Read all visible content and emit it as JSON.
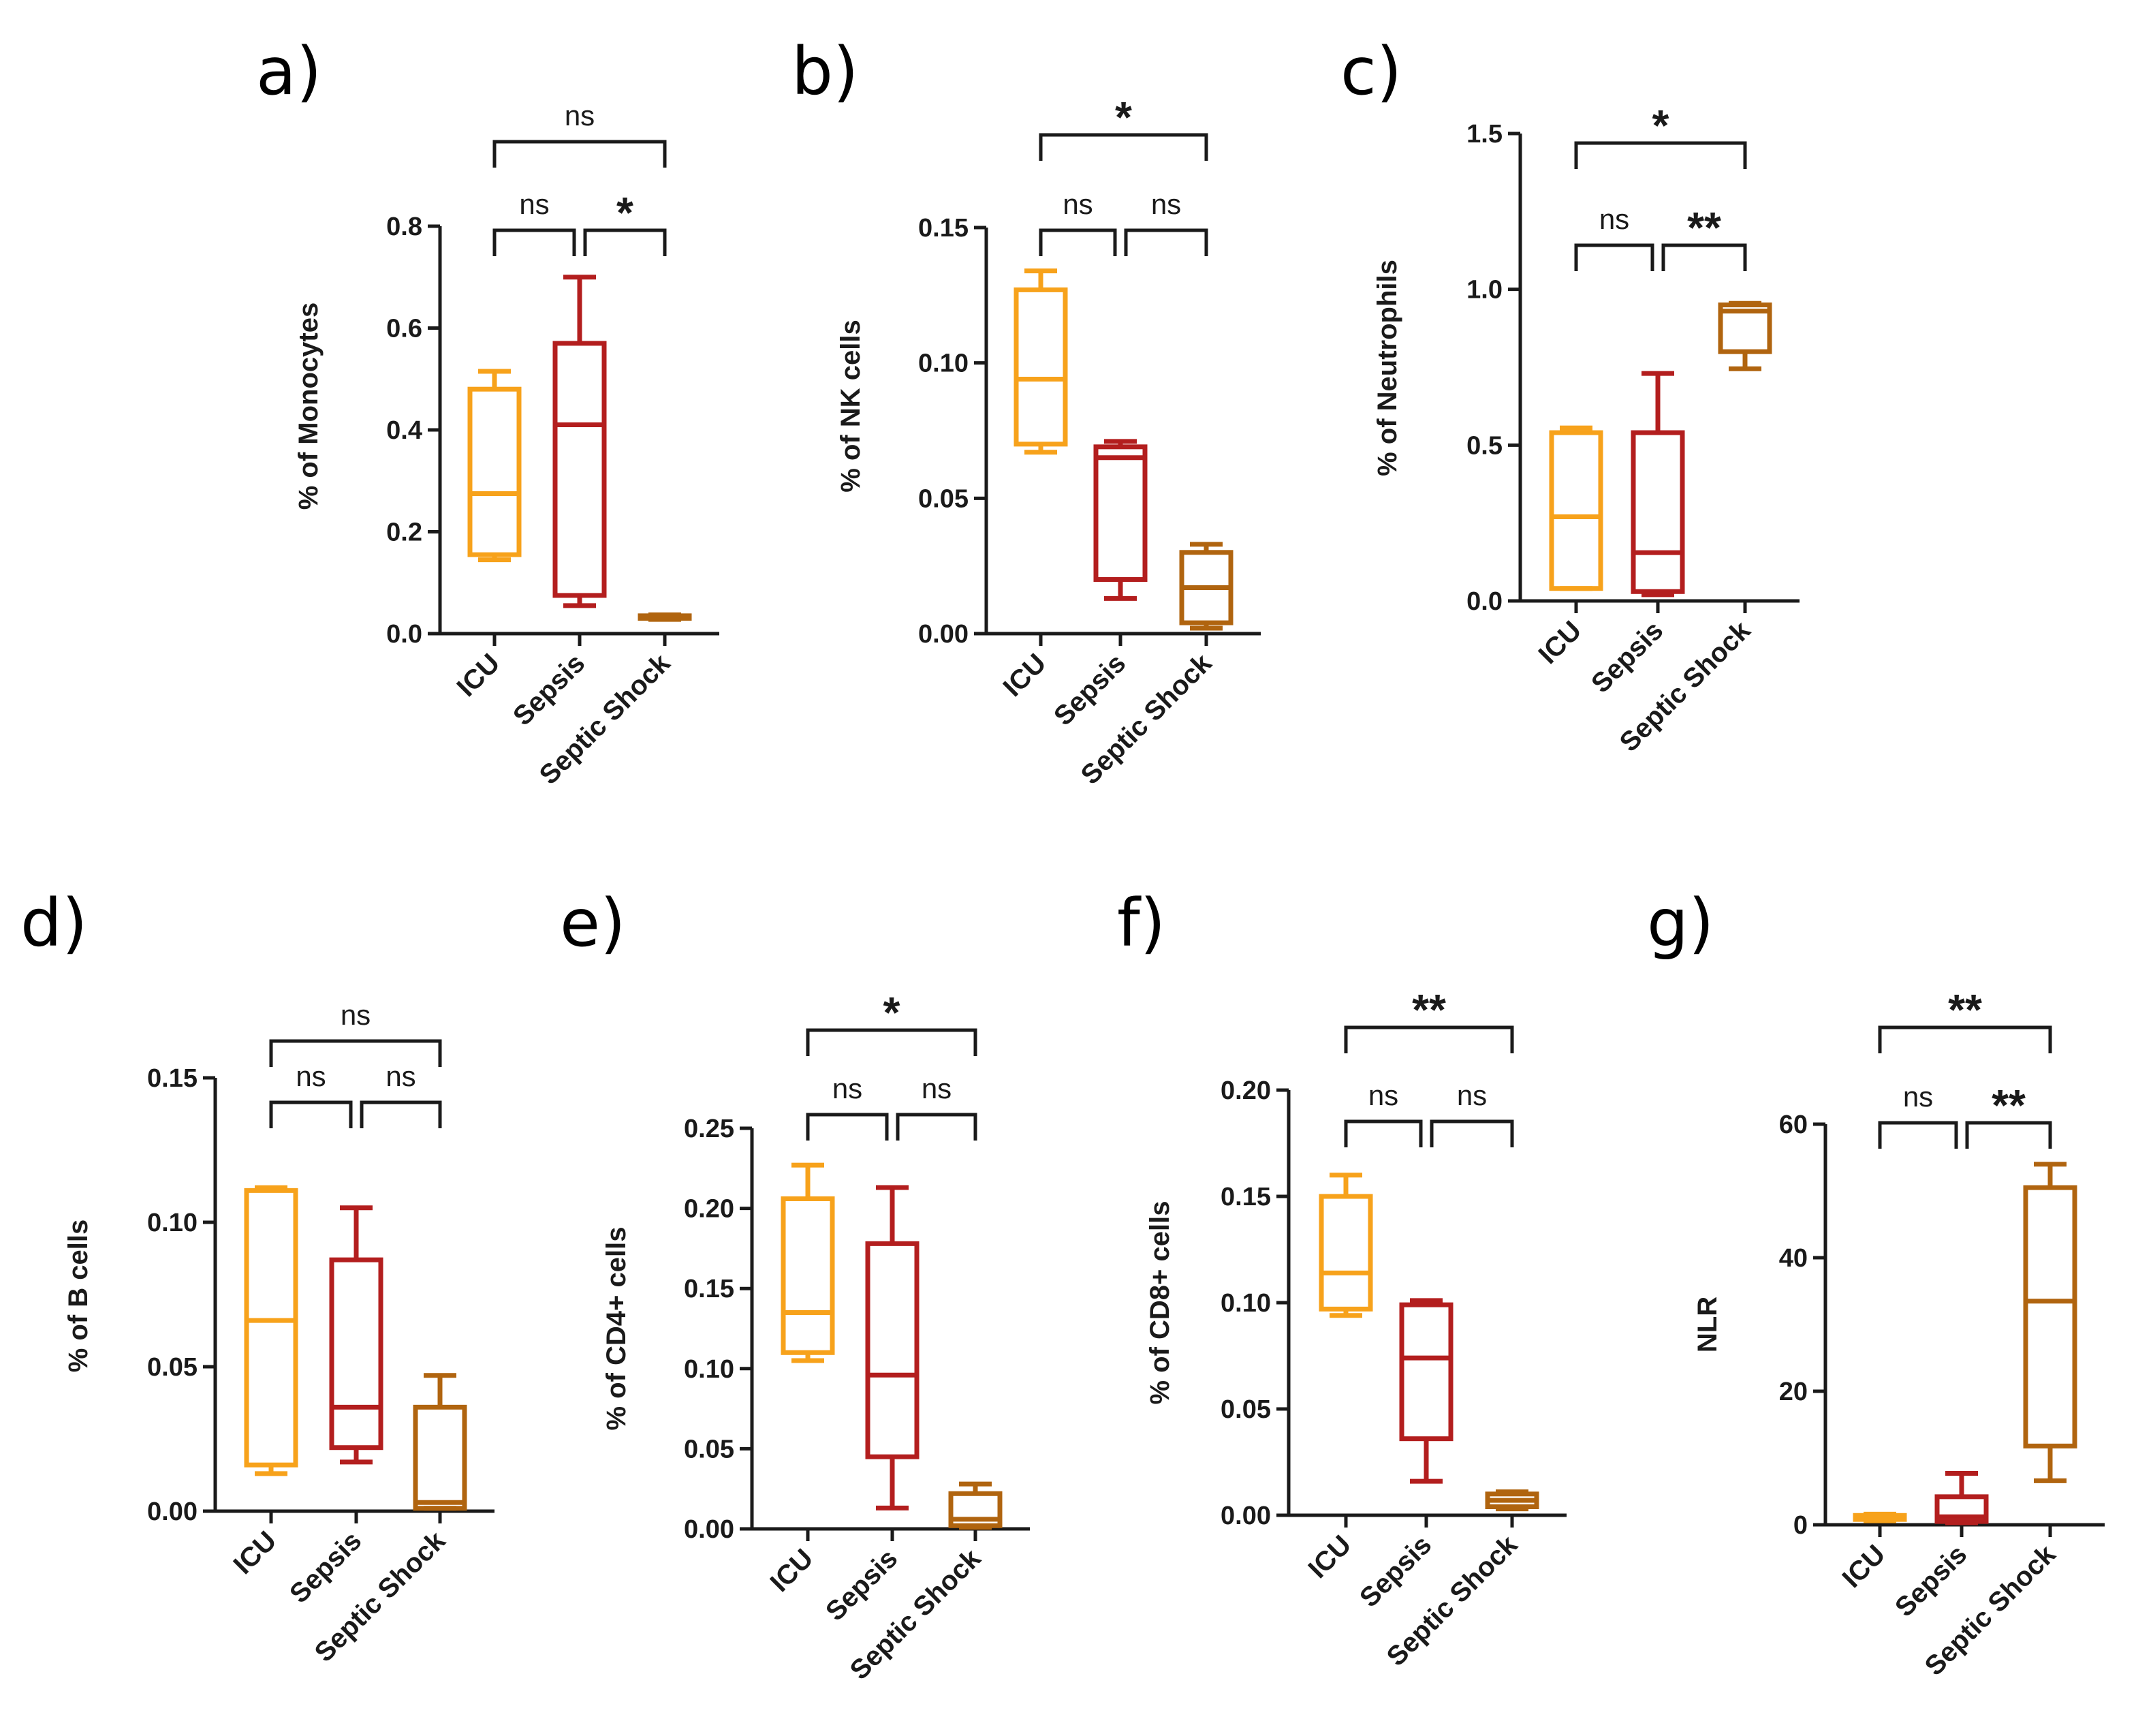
{
  "colors": {
    "ICU": "#F7A21B",
    "Sepsis": "#B31E1E",
    "Septic Shock": "#B0640F",
    "axis": "#1a1a1a"
  },
  "chart_data": [
    {
      "id": "a",
      "panel": "a)",
      "type": "box",
      "ylabel": "% of Monocytes",
      "ylim": [
        0,
        0.8
      ],
      "yticks": [
        0,
        0.2,
        0.4,
        0.6,
        0.8
      ],
      "ytick_labels": [
        "0.0",
        "0.2",
        "0.4",
        "0.6",
        "0.8"
      ],
      "categories": [
        "ICU",
        "Sepsis",
        "Septic Shock"
      ],
      "boxes": [
        {
          "group": "ICU",
          "min": 0.145,
          "q1": 0.155,
          "median": 0.275,
          "q3": 0.48,
          "max": 0.515
        },
        {
          "group": "Sepsis",
          "min": 0.055,
          "q1": 0.075,
          "median": 0.41,
          "q3": 0.57,
          "max": 0.7
        },
        {
          "group": "Septic Shock",
          "min": 0.028,
          "q1": 0.03,
          "median": 0.032,
          "q3": 0.035,
          "max": 0.037
        }
      ],
      "comparisons": [
        {
          "from": 0,
          "to": 1,
          "label": "ns",
          "level": 1
        },
        {
          "from": 1,
          "to": 2,
          "label": "*",
          "level": 1
        },
        {
          "from": 0,
          "to": 2,
          "label": "ns",
          "level": 2
        }
      ]
    },
    {
      "id": "b",
      "panel": "b)",
      "type": "box",
      "ylabel": "% of NK cells",
      "ylim": [
        0,
        0.15
      ],
      "yticks": [
        0,
        0.05,
        0.1,
        0.15
      ],
      "ytick_labels": [
        "0.00",
        "0.05",
        "0.10",
        "0.15"
      ],
      "categories": [
        "ICU",
        "Sepsis",
        "Septic Shock"
      ],
      "boxes": [
        {
          "group": "ICU",
          "min": 0.067,
          "q1": 0.07,
          "median": 0.094,
          "q3": 0.127,
          "max": 0.134
        },
        {
          "group": "Sepsis",
          "min": 0.013,
          "q1": 0.02,
          "median": 0.065,
          "q3": 0.069,
          "max": 0.071
        },
        {
          "group": "Septic Shock",
          "min": 0.002,
          "q1": 0.004,
          "median": 0.017,
          "q3": 0.03,
          "max": 0.033
        }
      ],
      "comparisons": [
        {
          "from": 0,
          "to": 1,
          "label": "ns",
          "level": 1
        },
        {
          "from": 1,
          "to": 2,
          "label": "ns",
          "level": 1
        },
        {
          "from": 0,
          "to": 2,
          "label": "*",
          "level": 2
        }
      ]
    },
    {
      "id": "c",
      "panel": "c)",
      "type": "box",
      "ylabel": "% of Neutrophils",
      "ylim": [
        0,
        1.5
      ],
      "yticks": [
        0,
        0.5,
        1.0,
        1.5
      ],
      "ytick_labels": [
        "0.0",
        "0.5",
        "1.0",
        "1.5"
      ],
      "categories": [
        "ICU",
        "Sepsis",
        "Septic Shock"
      ],
      "boxes": [
        {
          "group": "ICU",
          "min": 0.04,
          "q1": 0.04,
          "median": 0.27,
          "q3": 0.54,
          "max": 0.555
        },
        {
          "group": "Sepsis",
          "min": 0.02,
          "q1": 0.03,
          "median": 0.155,
          "q3": 0.54,
          "max": 0.73
        },
        {
          "group": "Septic Shock",
          "min": 0.745,
          "q1": 0.8,
          "median": 0.93,
          "q3": 0.95,
          "max": 0.955
        }
      ],
      "comparisons": [
        {
          "from": 0,
          "to": 1,
          "label": "ns",
          "level": 1
        },
        {
          "from": 1,
          "to": 2,
          "label": "**",
          "level": 1
        },
        {
          "from": 0,
          "to": 2,
          "label": "*",
          "level": 2
        }
      ]
    },
    {
      "id": "d",
      "panel": "d)",
      "type": "box",
      "ylabel": "% of B cells",
      "ylim": [
        0,
        0.15
      ],
      "yticks": [
        0,
        0.05,
        0.1,
        0.15
      ],
      "ytick_labels": [
        "0.00",
        "0.05",
        "0.10",
        "0.15"
      ],
      "categories": [
        "ICU",
        "Sepsis",
        "Septic Shock"
      ],
      "boxes": [
        {
          "group": "ICU",
          "min": 0.013,
          "q1": 0.016,
          "median": 0.066,
          "q3": 0.111,
          "max": 0.112
        },
        {
          "group": "Sepsis",
          "min": 0.017,
          "q1": 0.022,
          "median": 0.036,
          "q3": 0.087,
          "max": 0.105
        },
        {
          "group": "Septic Shock",
          "min": 0.001,
          "q1": 0.001,
          "median": 0.003,
          "q3": 0.036,
          "max": 0.047
        }
      ],
      "comparisons": [
        {
          "from": 0,
          "to": 1,
          "label": "ns",
          "level": 1
        },
        {
          "from": 1,
          "to": 2,
          "label": "ns",
          "level": 1
        },
        {
          "from": 0,
          "to": 2,
          "label": "ns",
          "level": 2
        }
      ]
    },
    {
      "id": "e",
      "panel": "e)",
      "type": "box",
      "ylabel": "% of CD4+ cells",
      "ylim": [
        0,
        0.25
      ],
      "yticks": [
        0,
        0.05,
        0.1,
        0.15,
        0.2,
        0.25
      ],
      "ytick_labels": [
        "0.00",
        "0.05",
        "0.10",
        "0.15",
        "0.20",
        "0.25"
      ],
      "categories": [
        "ICU",
        "Sepsis",
        "Septic Shock"
      ],
      "boxes": [
        {
          "group": "ICU",
          "min": 0.105,
          "q1": 0.11,
          "median": 0.135,
          "q3": 0.206,
          "max": 0.227
        },
        {
          "group": "Sepsis",
          "min": 0.013,
          "q1": 0.045,
          "median": 0.096,
          "q3": 0.178,
          "max": 0.213
        },
        {
          "group": "Septic Shock",
          "min": 0.001,
          "q1": 0.002,
          "median": 0.006,
          "q3": 0.022,
          "max": 0.028
        }
      ],
      "comparisons": [
        {
          "from": 0,
          "to": 1,
          "label": "ns",
          "level": 1
        },
        {
          "from": 1,
          "to": 2,
          "label": "ns",
          "level": 1
        },
        {
          "from": 0,
          "to": 2,
          "label": "*",
          "level": 2
        }
      ]
    },
    {
      "id": "f",
      "panel": "f)",
      "type": "box",
      "ylabel": "% of CD8+ cells",
      "ylim": [
        0,
        0.2
      ],
      "yticks": [
        0,
        0.05,
        0.1,
        0.15,
        0.2
      ],
      "ytick_labels": [
        "0.00",
        "0.05",
        "0.10",
        "0.15",
        "0.20"
      ],
      "categories": [
        "ICU",
        "Sepsis",
        "Septic Shock"
      ],
      "boxes": [
        {
          "group": "ICU",
          "min": 0.094,
          "q1": 0.097,
          "median": 0.114,
          "q3": 0.15,
          "max": 0.16
        },
        {
          "group": "Sepsis",
          "min": 0.016,
          "q1": 0.036,
          "median": 0.074,
          "q3": 0.099,
          "max": 0.101
        },
        {
          "group": "Septic Shock",
          "min": 0.003,
          "q1": 0.004,
          "median": 0.007,
          "q3": 0.01,
          "max": 0.011
        }
      ],
      "comparisons": [
        {
          "from": 0,
          "to": 1,
          "label": "ns",
          "level": 1
        },
        {
          "from": 1,
          "to": 2,
          "label": "ns",
          "level": 1
        },
        {
          "from": 0,
          "to": 2,
          "label": "**",
          "level": 2
        }
      ]
    },
    {
      "id": "g",
      "panel": "g)",
      "type": "box",
      "ylabel": "NLR",
      "ylim": [
        0,
        60
      ],
      "yticks": [
        0,
        20,
        40,
        60
      ],
      "ytick_labels": [
        "0",
        "20",
        "40",
        "60"
      ],
      "categories": [
        "ICU",
        "Sepsis",
        "Septic Shock"
      ],
      "boxes": [
        {
          "group": "ICU",
          "min": 0.6,
          "q1": 0.8,
          "median": 1.0,
          "q3": 1.4,
          "max": 1.6
        },
        {
          "group": "Sepsis",
          "min": 0.3,
          "q1": 0.5,
          "median": 1.2,
          "q3": 4.2,
          "max": 7.7
        },
        {
          "group": "Septic Shock",
          "min": 6.6,
          "q1": 11.8,
          "median": 33.5,
          "q3": 50.5,
          "max": 54.0
        }
      ],
      "comparisons": [
        {
          "from": 0,
          "to": 1,
          "label": "ns",
          "level": 1
        },
        {
          "from": 1,
          "to": 2,
          "label": "**",
          "level": 1
        },
        {
          "from": 0,
          "to": 2,
          "label": "**",
          "level": 2
        }
      ]
    }
  ]
}
